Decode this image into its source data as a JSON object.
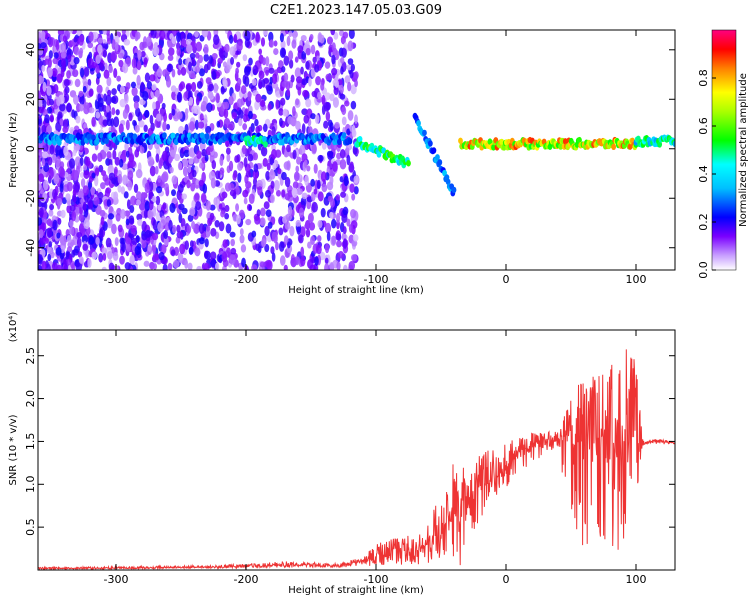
{
  "title": "C2E1.2023.147.05.03.G09",
  "chart_data": [
    {
      "type": "heatmap",
      "xlabel": "Height of straight line (km)",
      "ylabel": "Frequency (Hz)",
      "xlim": [
        -360,
        130
      ],
      "ylim": [
        -49,
        48
      ],
      "xticks": [
        "-300",
        "-200",
        "-100",
        "0",
        "100"
      ],
      "xtick_values": [
        -300,
        -200,
        -100,
        0,
        100
      ],
      "yticks": [
        "-40",
        "-20",
        "0",
        "20",
        "40"
      ],
      "ytick_values": [
        -40,
        -20,
        0,
        20,
        40
      ],
      "colorbar": {
        "label": "Normalized spectral amplitude",
        "range": [
          0,
          1
        ],
        "ticks": [
          "0.0",
          "0.2",
          "0.4",
          "0.6",
          "0.8"
        ],
        "tick_values": [
          0,
          0.2,
          0.4,
          0.6,
          0.8
        ],
        "colormap": "rainbow",
        "colors": [
          "#ffffff",
          "#7a00ff",
          "#0000ff",
          "#00ffff",
          "#00ff00",
          "#ffff00",
          "#ff8000",
          "#ff0000",
          "#ff0080"
        ]
      },
      "features": [
        {
          "x": [
            -360,
            -120
          ],
          "freq": 4,
          "amplitude": 0.3
        },
        {
          "x": [
            -200,
            -185
          ],
          "freq": 3,
          "amplitude": 0.45
        },
        {
          "x": [
            -115,
            -75
          ],
          "freq": [
            3,
            -6
          ],
          "amplitude": 0.5
        },
        {
          "x": [
            -70,
            -40
          ],
          "freq": [
            13,
            -18
          ],
          "amplitude": 0.3
        },
        {
          "x": [
            -35,
            100
          ],
          "freq": 2,
          "amplitude": 0.75
        },
        {
          "x": [
            100,
            130
          ],
          "freq": 3,
          "amplitude": 0.45
        }
      ]
    },
    {
      "type": "line",
      "xlabel": "Height of straight line (km)",
      "ylabel": "SNR (10 * v/v)",
      "y_multiplier": "(x10⁴)",
      "xlim": [
        -360,
        130
      ],
      "ylim": [
        0,
        2.8
      ],
      "xticks": [
        "-300",
        "-200",
        "-100",
        "0",
        "100"
      ],
      "xtick_values": [
        -300,
        -200,
        -100,
        0,
        100
      ],
      "yticks": [
        "0.5",
        "1.0",
        "1.5",
        "2.0",
        "2.5"
      ],
      "ytick_values": [
        0.5,
        1.0,
        1.5,
        2.0,
        2.5
      ],
      "color": "#ee3333",
      "series": [
        {
          "x": [
            -360,
            -300,
            -250,
            -200,
            -170,
            -130,
            -110,
            -100,
            -90,
            -80,
            -70,
            -60,
            -50,
            -45,
            -40,
            -35,
            -30,
            -25,
            -20,
            -10,
            0,
            10,
            20,
            30,
            40,
            50,
            60,
            70,
            80,
            90,
            95,
            100,
            105,
            110,
            120,
            130
          ],
          "y": [
            0.02,
            0.02,
            0.03,
            0.04,
            0.06,
            0.05,
            0.1,
            0.15,
            0.22,
            0.28,
            0.2,
            0.3,
            0.45,
            0.6,
            0.75,
            0.9,
            0.75,
            0.85,
            0.95,
            1.05,
            1.2,
            1.35,
            1.45,
            1.52,
            1.55,
            1.55,
            1.6,
            1.55,
            1.5,
            1.5,
            1.5,
            1.45,
            1.48,
            1.5,
            1.5,
            1.48
          ],
          "upper": [
            0.03,
            0.04,
            0.05,
            0.07,
            0.1,
            0.08,
            0.15,
            0.3,
            0.4,
            0.45,
            0.35,
            0.55,
            0.9,
            1.1,
            1.3,
            1.45,
            1.1,
            1.25,
            1.35,
            1.45,
            1.5,
            1.58,
            1.6,
            1.62,
            1.65,
            2.0,
            2.35,
            2.3,
            2.4,
            2.6,
            2.75,
            2.4,
            1.55,
            1.52,
            1.52,
            1.5
          ],
          "lower": [
            0.01,
            0.01,
            0.02,
            0.02,
            0.03,
            0.03,
            0.04,
            0.05,
            0.06,
            0.05,
            0.05,
            0.05,
            0.05,
            0.1,
            0.05,
            0.02,
            0.4,
            0.45,
            0.55,
            0.8,
            0.95,
            1.1,
            1.25,
            1.35,
            1.4,
            0.3,
            0.15,
            0.4,
            0.2,
            0.15,
            0.1,
            0.8,
            1.45,
            1.47,
            1.47,
            1.45
          ]
        }
      ]
    }
  ]
}
